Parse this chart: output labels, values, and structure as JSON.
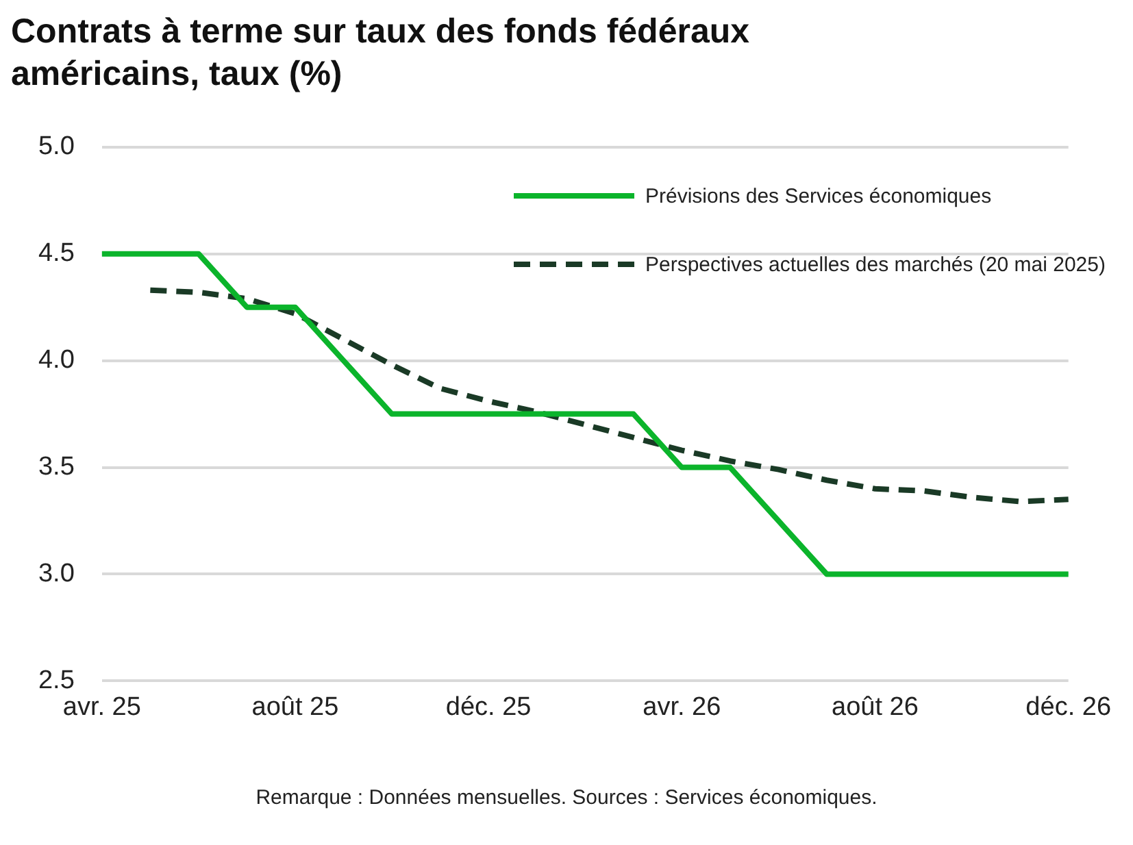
{
  "chart_data": {
    "type": "line",
    "title": "Contrats à terme sur taux des fonds fédéraux américains, taux (%)",
    "categories": [
      "avr. 25",
      null,
      null,
      null,
      "août 25",
      null,
      null,
      null,
      "déc. 25",
      null,
      null,
      null,
      "avr. 26",
      null,
      null,
      null,
      "août 26",
      null,
      null,
      null,
      "déc. 26"
    ],
    "series": [
      {
        "name": "Prévisions des Services économiques",
        "color": "#0bb42b",
        "line_style": "solid",
        "values": [
          4.5,
          4.5,
          4.5,
          4.25,
          4.25,
          4.0,
          3.75,
          3.75,
          3.75,
          3.75,
          3.75,
          3.75,
          3.5,
          3.5,
          3.25,
          3.0,
          3.0,
          3.0,
          3.0,
          3.0,
          3.0
        ]
      },
      {
        "name": "Perspectives actuelles des marchés (20 mai 2025)",
        "color": "#1a3a26",
        "line_style": "dashed",
        "values": [
          null,
          4.33,
          4.32,
          4.29,
          4.22,
          4.1,
          3.98,
          3.87,
          3.81,
          3.76,
          3.7,
          3.64,
          3.58,
          3.53,
          3.49,
          3.44,
          3.4,
          3.39,
          3.36,
          3.34,
          3.35
        ]
      }
    ],
    "ylim": [
      2.5,
      5.0
    ],
    "yticks": [
      {
        "value": 2.5,
        "label": "2.5"
      },
      {
        "value": 3.0,
        "label": "3.0"
      },
      {
        "value": 3.5,
        "label": "3.5"
      },
      {
        "value": 4.0,
        "label": "4.0"
      },
      {
        "value": 4.5,
        "label": "4.5"
      },
      {
        "value": 5.0,
        "label": "5.0"
      }
    ],
    "grid": "y",
    "legend": "top right",
    "marker": "none",
    "annotations": [
      "Remarque : Données mensuelles. Sources : Services économiques."
    ]
  }
}
